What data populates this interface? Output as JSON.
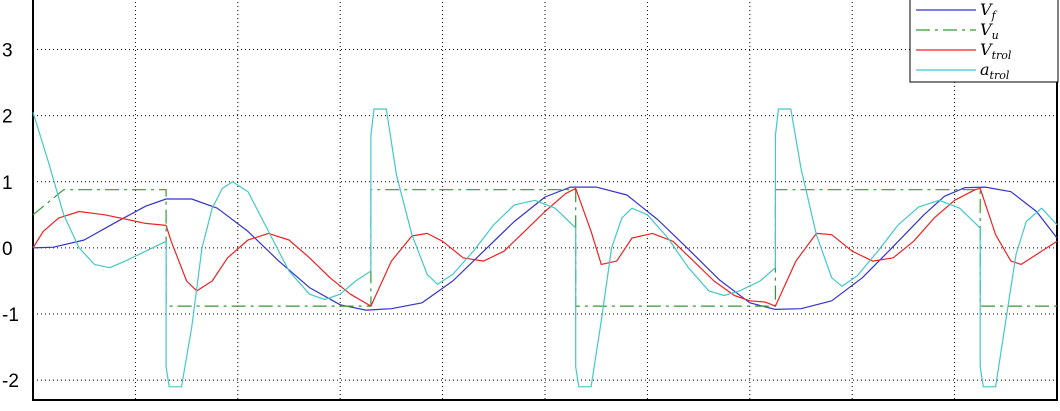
{
  "chart_data": {
    "type": "line",
    "title": "",
    "xlabel": "",
    "ylabel": "",
    "xlim": [
      0,
      1
    ],
    "ylim": [
      -2.3,
      3.9
    ],
    "yticks": [
      "3",
      "2",
      "1",
      "0",
      "-1",
      "-2"
    ],
    "grid": true,
    "legend_position": "top-right",
    "series": [
      {
        "name": "V_f",
        "label_main": "V",
        "label_sub": "f",
        "color": "#3333cc",
        "dash": "",
        "points": [
          [
            0,
            0
          ],
          [
            0.02,
            0.01
          ],
          [
            0.05,
            0.12
          ],
          [
            0.08,
            0.38
          ],
          [
            0.11,
            0.63
          ],
          [
            0.13,
            0.74
          ],
          [
            0.155,
            0.74
          ],
          [
            0.18,
            0.6
          ],
          [
            0.21,
            0.25
          ],
          [
            0.24,
            -0.2
          ],
          [
            0.27,
            -0.6
          ],
          [
            0.3,
            -0.86
          ],
          [
            0.325,
            -0.94
          ],
          [
            0.35,
            -0.92
          ],
          [
            0.38,
            -0.83
          ],
          [
            0.41,
            -0.5
          ],
          [
            0.44,
            -0.05
          ],
          [
            0.47,
            0.4
          ],
          [
            0.5,
            0.77
          ],
          [
            0.525,
            0.92
          ],
          [
            0.55,
            0.92
          ],
          [
            0.58,
            0.8
          ],
          [
            0.61,
            0.43
          ],
          [
            0.64,
            -0.02
          ],
          [
            0.67,
            -0.48
          ],
          [
            0.7,
            -0.83
          ],
          [
            0.725,
            -0.93
          ],
          [
            0.75,
            -0.92
          ],
          [
            0.78,
            -0.8
          ],
          [
            0.81,
            -0.45
          ],
          [
            0.84,
            0.02
          ],
          [
            0.87,
            0.5
          ],
          [
            0.89,
            0.78
          ],
          [
            0.91,
            0.91
          ],
          [
            0.93,
            0.92
          ],
          [
            0.955,
            0.85
          ],
          [
            0.98,
            0.55
          ],
          [
            1.0,
            0.15
          ]
        ]
      },
      {
        "name": "V_u",
        "label_main": "V",
        "label_sub": "u",
        "color": "#339933",
        "dash": "14,5,3,5",
        "points": [
          [
            0,
            0.5
          ],
          [
            0.03,
            0.88
          ],
          [
            0.13,
            0.88
          ],
          [
            0.13,
            -0.88
          ],
          [
            0.33,
            -0.88
          ],
          [
            0.33,
            0.88
          ],
          [
            0.53,
            0.88
          ],
          [
            0.53,
            -0.88
          ],
          [
            0.725,
            -0.88
          ],
          [
            0.725,
            0.88
          ],
          [
            0.925,
            0.88
          ],
          [
            0.925,
            -0.88
          ],
          [
            1.0,
            -0.88
          ]
        ]
      },
      {
        "name": "V_trol",
        "label_main": "V",
        "label_sub": "trol",
        "color": "#ee2222",
        "dash": "",
        "points": [
          [
            0,
            0
          ],
          [
            0.01,
            0.25
          ],
          [
            0.025,
            0.45
          ],
          [
            0.045,
            0.55
          ],
          [
            0.07,
            0.5
          ],
          [
            0.095,
            0.42
          ],
          [
            0.11,
            0.37
          ],
          [
            0.13,
            0.34
          ],
          [
            0.135,
            0.1
          ],
          [
            0.15,
            -0.5
          ],
          [
            0.16,
            -0.65
          ],
          [
            0.175,
            -0.5
          ],
          [
            0.19,
            -0.15
          ],
          [
            0.21,
            0.12
          ],
          [
            0.23,
            0.22
          ],
          [
            0.25,
            0.12
          ],
          [
            0.27,
            -0.15
          ],
          [
            0.29,
            -0.45
          ],
          [
            0.31,
            -0.7
          ],
          [
            0.33,
            -0.88
          ],
          [
            0.35,
            -0.2
          ],
          [
            0.37,
            0.18
          ],
          [
            0.385,
            0.22
          ],
          [
            0.4,
            0.1
          ],
          [
            0.42,
            -0.15
          ],
          [
            0.44,
            -0.2
          ],
          [
            0.46,
            -0.05
          ],
          [
            0.48,
            0.25
          ],
          [
            0.5,
            0.55
          ],
          [
            0.52,
            0.82
          ],
          [
            0.53,
            0.9
          ],
          [
            0.545,
            0.25
          ],
          [
            0.555,
            -0.25
          ],
          [
            0.57,
            -0.2
          ],
          [
            0.585,
            0.15
          ],
          [
            0.605,
            0.22
          ],
          [
            0.625,
            0.1
          ],
          [
            0.645,
            -0.2
          ],
          [
            0.665,
            -0.5
          ],
          [
            0.685,
            -0.72
          ],
          [
            0.7,
            -0.8
          ],
          [
            0.715,
            -0.82
          ],
          [
            0.725,
            -0.88
          ],
          [
            0.745,
            -0.2
          ],
          [
            0.765,
            0.22
          ],
          [
            0.78,
            0.2
          ],
          [
            0.8,
            -0.05
          ],
          [
            0.82,
            -0.2
          ],
          [
            0.84,
            -0.15
          ],
          [
            0.86,
            0.1
          ],
          [
            0.88,
            0.45
          ],
          [
            0.9,
            0.72
          ],
          [
            0.92,
            0.88
          ],
          [
            0.925,
            0.9
          ],
          [
            0.94,
            0.2
          ],
          [
            0.955,
            -0.2
          ],
          [
            0.965,
            -0.25
          ],
          [
            0.98,
            -0.1
          ],
          [
            1.0,
            0.1
          ]
        ]
      },
      {
        "name": "a_trol",
        "label_main": "a",
        "label_sub": "trol",
        "color": "#44c8c8",
        "dash": "",
        "points": [
          [
            0,
            2.05
          ],
          [
            0.015,
            1.3
          ],
          [
            0.03,
            0.5
          ],
          [
            0.045,
            0.0
          ],
          [
            0.06,
            -0.25
          ],
          [
            0.075,
            -0.3
          ],
          [
            0.09,
            -0.2
          ],
          [
            0.11,
            -0.05
          ],
          [
            0.13,
            0.1
          ],
          [
            0.13,
            -1.8
          ],
          [
            0.133,
            -2.1
          ],
          [
            0.145,
            -2.1
          ],
          [
            0.155,
            -1.2
          ],
          [
            0.165,
            0.0
          ],
          [
            0.175,
            0.6
          ],
          [
            0.185,
            0.9
          ],
          [
            0.195,
            1.0
          ],
          [
            0.21,
            0.85
          ],
          [
            0.23,
            0.25
          ],
          [
            0.25,
            -0.35
          ],
          [
            0.27,
            -0.7
          ],
          [
            0.285,
            -0.78
          ],
          [
            0.3,
            -0.7
          ],
          [
            0.315,
            -0.5
          ],
          [
            0.33,
            -0.35
          ],
          [
            0.33,
            1.7
          ],
          [
            0.333,
            2.1
          ],
          [
            0.345,
            2.1
          ],
          [
            0.355,
            1.1
          ],
          [
            0.37,
            0.2
          ],
          [
            0.385,
            -0.4
          ],
          [
            0.395,
            -0.55
          ],
          [
            0.41,
            -0.4
          ],
          [
            0.43,
            -0.05
          ],
          [
            0.45,
            0.35
          ],
          [
            0.47,
            0.65
          ],
          [
            0.49,
            0.72
          ],
          [
            0.51,
            0.6
          ],
          [
            0.53,
            0.3
          ],
          [
            0.53,
            -1.8
          ],
          [
            0.533,
            -2.1
          ],
          [
            0.545,
            -2.1
          ],
          [
            0.555,
            -1.1
          ],
          [
            0.565,
            0.0
          ],
          [
            0.575,
            0.45
          ],
          [
            0.585,
            0.6
          ],
          [
            0.6,
            0.5
          ],
          [
            0.62,
            0.15
          ],
          [
            0.64,
            -0.3
          ],
          [
            0.66,
            -0.65
          ],
          [
            0.675,
            -0.72
          ],
          [
            0.69,
            -0.65
          ],
          [
            0.71,
            -0.5
          ],
          [
            0.725,
            -0.3
          ],
          [
            0.725,
            1.7
          ],
          [
            0.728,
            2.1
          ],
          [
            0.74,
            2.1
          ],
          [
            0.75,
            1.2
          ],
          [
            0.765,
            0.2
          ],
          [
            0.78,
            -0.45
          ],
          [
            0.79,
            -0.58
          ],
          [
            0.805,
            -0.42
          ],
          [
            0.825,
            -0.05
          ],
          [
            0.845,
            0.35
          ],
          [
            0.865,
            0.62
          ],
          [
            0.885,
            0.72
          ],
          [
            0.905,
            0.6
          ],
          [
            0.925,
            0.3
          ],
          [
            0.925,
            -1.8
          ],
          [
            0.928,
            -2.1
          ],
          [
            0.94,
            -2.1
          ],
          [
            0.95,
            -1.1
          ],
          [
            0.96,
            -0.1
          ],
          [
            0.97,
            0.4
          ],
          [
            0.985,
            0.6
          ],
          [
            1.0,
            0.35
          ]
        ]
      }
    ]
  }
}
